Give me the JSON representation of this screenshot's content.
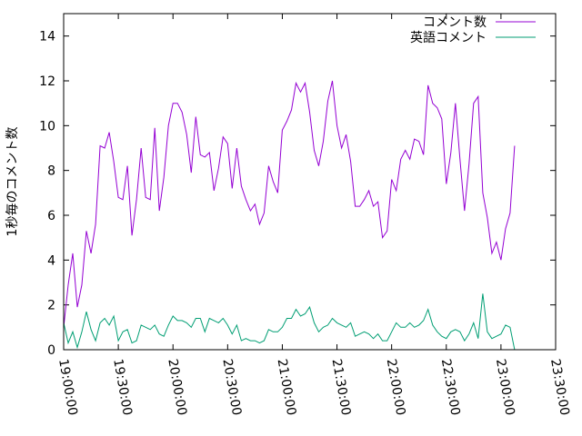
{
  "chart_data": {
    "type": "line",
    "title": "",
    "xlabel": "",
    "ylabel": "1秒毎のコメント数",
    "xlim": [
      "19:00:00",
      "23:30:00"
    ],
    "ylim": [
      0,
      15
    ],
    "x_tick_labels": [
      "19:00:00",
      "19:30:00",
      "20:00:00",
      "20:30:00",
      "21:00:00",
      "21:30:00",
      "22:00:00",
      "22:30:00",
      "23:00:00",
      "23:30:00"
    ],
    "y_ticks": [
      0,
      2,
      4,
      6,
      8,
      10,
      12,
      14
    ],
    "grid": false,
    "legend_position": "top-right",
    "x_interval_minutes": 2.5,
    "series": [
      {
        "name": "コメント数",
        "color": "#9400d3",
        "values": [
          1.0,
          2.9,
          4.3,
          1.9,
          2.9,
          5.3,
          4.3,
          5.6,
          9.1,
          9.0,
          9.7,
          8.4,
          6.8,
          6.7,
          8.2,
          5.1,
          6.7,
          9.0,
          6.8,
          6.7,
          9.9,
          6.2,
          7.7,
          10.0,
          11.0,
          11.0,
          10.6,
          9.6,
          7.9,
          10.4,
          8.7,
          8.6,
          8.8,
          7.1,
          8.1,
          9.5,
          9.2,
          7.2,
          9.0,
          7.3,
          6.7,
          6.2,
          6.5,
          5.6,
          6.1,
          8.2,
          7.5,
          7.0,
          9.8,
          10.2,
          10.7,
          11.9,
          11.5,
          11.9,
          10.6,
          8.9,
          8.2,
          9.3,
          11.1,
          12.0,
          10.0,
          9.0,
          9.6,
          8.4,
          6.4,
          6.4,
          6.7,
          7.1,
          6.4,
          6.6,
          5.0,
          5.3,
          7.6,
          7.1,
          8.5,
          8.9,
          8.5,
          9.4,
          9.3,
          8.7,
          11.8,
          11.0,
          10.8,
          10.3,
          7.4,
          8.8,
          11.0,
          8.5,
          6.2,
          8.3,
          11.0,
          11.3,
          7.0,
          5.9,
          4.3,
          4.8,
          4.0,
          5.4,
          6.1,
          9.1
        ]
      },
      {
        "name": "英語コメント",
        "color": "#009e73",
        "values": [
          1.2,
          0.3,
          0.8,
          0.1,
          0.8,
          1.7,
          0.9,
          0.4,
          1.2,
          1.4,
          1.1,
          1.5,
          0.4,
          0.8,
          0.9,
          0.3,
          0.4,
          1.1,
          1.0,
          0.9,
          1.1,
          0.7,
          0.6,
          1.1,
          1.5,
          1.3,
          1.3,
          1.2,
          1.0,
          1.4,
          1.4,
          0.8,
          1.4,
          1.3,
          1.2,
          1.4,
          1.1,
          0.7,
          1.1,
          0.4,
          0.5,
          0.4,
          0.4,
          0.3,
          0.4,
          0.9,
          0.8,
          0.8,
          1.0,
          1.4,
          1.4,
          1.8,
          1.5,
          1.6,
          1.9,
          1.2,
          0.8,
          1.0,
          1.1,
          1.4,
          1.2,
          1.1,
          1.0,
          1.2,
          0.6,
          0.7,
          0.8,
          0.7,
          0.5,
          0.7,
          0.4,
          0.4,
          0.8,
          1.2,
          1.0,
          1.0,
          1.2,
          1.0,
          1.1,
          1.3,
          1.8,
          1.1,
          0.8,
          0.6,
          0.5,
          0.8,
          0.9,
          0.8,
          0.4,
          0.7,
          1.2,
          0.5,
          2.5,
          0.8,
          0.5,
          0.6,
          0.7,
          1.1,
          1.0,
          0.0
        ]
      }
    ]
  }
}
